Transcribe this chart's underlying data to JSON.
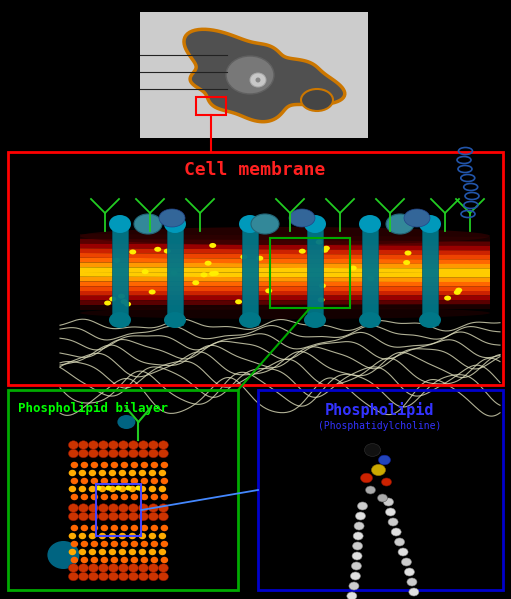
{
  "bg_color": "#000000",
  "fig_width": 5.11,
  "fig_height": 5.99,
  "dpi": 100,
  "cell_membrane_label": "Cell membrane",
  "cell_membrane_label_color": "#ff2020",
  "phospholipid_bilayer_label": "Phospholipid bilayer",
  "phospholipid_bilayer_label_color": "#00ff00",
  "phospholipid_label": "Phospholipid",
  "phospholipid_label_color": "#3333ff",
  "phospholipid_sublabel": "(Phosphatidylcholine)",
  "phospholipid_sublabel_color": "#3333ff"
}
